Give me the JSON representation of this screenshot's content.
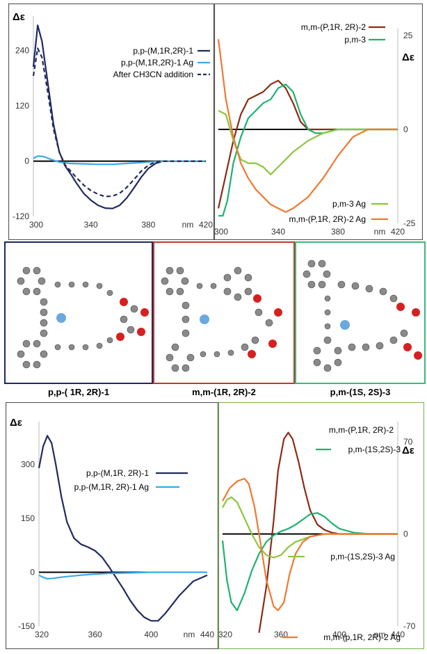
{
  "chart_data": [
    {
      "id": "A",
      "type": "line",
      "ylabel": "Δε",
      "xlabel": "nm",
      "x_ticks": [
        "300",
        "340",
        "380",
        "420"
      ],
      "y_ticks": [
        "240",
        "120",
        "0",
        "-120"
      ],
      "xlim": [
        300,
        420
      ],
      "ylim": [
        -120,
        300
      ],
      "series": [
        {
          "name": "p,p-(M,1R,2R)-1",
          "color": "#1f2a5e",
          "dash": false,
          "x": [
            300,
            303,
            306,
            310,
            314,
            318,
            322,
            326,
            330,
            335,
            340,
            345,
            350,
            355,
            360,
            365,
            370,
            375,
            380,
            385,
            390,
            400,
            410,
            420
          ],
          "y": [
            205,
            295,
            260,
            170,
            80,
            20,
            -10,
            -28,
            -48,
            -70,
            -85,
            -96,
            -102,
            -103,
            -96,
            -80,
            -58,
            -35,
            -16,
            -5,
            0,
            0,
            0,
            0
          ]
        },
        {
          "name": "p,p-(M,1R,2R)-1 Ag",
          "color": "#3aa9e8",
          "dash": false,
          "x": [
            300,
            303,
            307,
            312,
            318,
            325,
            335,
            345,
            355,
            365,
            375,
            385,
            395,
            420
          ],
          "y": [
            6,
            11,
            10,
            4,
            -2,
            -5,
            -6,
            -7,
            -7,
            -5,
            -3,
            -1,
            0,
            0
          ]
        },
        {
          "name": "After CH3CN addition",
          "color": "#1f2a5e",
          "dash": true,
          "x": [
            300,
            303,
            306,
            310,
            314,
            318,
            322,
            326,
            330,
            335,
            340,
            345,
            350,
            355,
            360,
            365,
            370,
            375,
            380,
            385,
            390,
            400,
            410,
            420
          ],
          "y": [
            185,
            245,
            225,
            150,
            70,
            20,
            -8,
            -22,
            -36,
            -52,
            -64,
            -72,
            -77,
            -76,
            -70,
            -57,
            -40,
            -22,
            -9,
            -2,
            0,
            0,
            0,
            0
          ]
        }
      ]
    },
    {
      "id": "B",
      "type": "line",
      "ylabel": "Δε",
      "xlabel": "nm",
      "x_ticks": [
        "300",
        "340",
        "380",
        "420"
      ],
      "y_ticks": [
        "25",
        "0",
        "-25"
      ],
      "xlim": [
        300,
        420
      ],
      "ylim": [
        -25,
        25
      ],
      "series": [
        {
          "name": "m,m-(P,1R, 2R)-2",
          "color": "#8b2c14",
          "x": [
            300,
            305,
            310,
            315,
            320,
            325,
            330,
            335,
            340,
            345,
            350,
            355,
            360,
            365,
            370,
            380,
            390,
            420
          ],
          "y": [
            -21,
            -12,
            -3,
            4,
            8,
            9,
            10,
            12,
            13,
            11,
            7,
            2,
            0,
            0,
            0,
            0,
            0,
            0
          ]
        },
        {
          "name": "p,m-3",
          "color": "#1db26f",
          "x": [
            300,
            303,
            306,
            310,
            315,
            320,
            325,
            330,
            335,
            340,
            345,
            350,
            355,
            360,
            365,
            370,
            380,
            390,
            420
          ],
          "y": [
            -23,
            -23,
            -19,
            -9,
            -2,
            3,
            5,
            7,
            8,
            11,
            12,
            10,
            4,
            0,
            -1,
            -1,
            0,
            0,
            0
          ]
        },
        {
          "name": "p,m-3 Ag",
          "color": "#8cc63f",
          "x": [
            300,
            305,
            310,
            315,
            320,
            325,
            330,
            335,
            340,
            345,
            350,
            360,
            370,
            380,
            390,
            420
          ],
          "y": [
            5,
            4,
            -3,
            -8,
            -9,
            -9,
            -10,
            -12,
            -10,
            -8,
            -6,
            -3,
            -1,
            0,
            0,
            0
          ]
        },
        {
          "name": "m,m-(P,1R, 2R)-2 Ag",
          "color": "#f07830",
          "x": [
            300,
            305,
            310,
            315,
            320,
            325,
            330,
            335,
            340,
            345,
            350,
            360,
            370,
            380,
            390,
            400,
            410,
            420
          ],
          "y": [
            24,
            8,
            -2,
            -9,
            -13,
            -16,
            -18,
            -20,
            -21,
            -22,
            -21,
            -18,
            -13,
            -7,
            -2,
            0,
            0,
            0
          ]
        }
      ]
    },
    {
      "id": "C",
      "type": "line",
      "ylabel": "Δε",
      "xlabel": "nm",
      "x_ticks": [
        "320",
        "360",
        "400",
        "440"
      ],
      "y_ticks": [
        "300",
        "150",
        "0",
        "-150"
      ],
      "xlim": [
        320,
        440
      ],
      "ylim": [
        -150,
        400
      ],
      "series": [
        {
          "name": "p,p-(M,1R, 2R)-1",
          "color": "#1f2a5e",
          "x": [
            320,
            323,
            326,
            329,
            332,
            336,
            340,
            345,
            350,
            355,
            360,
            365,
            370,
            375,
            380,
            385,
            390,
            395,
            400,
            405,
            410,
            420,
            430,
            440
          ],
          "y": [
            290,
            350,
            380,
            360,
            300,
            210,
            140,
            95,
            78,
            70,
            60,
            42,
            15,
            -15,
            -45,
            -78,
            -105,
            -125,
            -135,
            -135,
            -115,
            -65,
            -25,
            -8
          ]
        },
        {
          "name": "p,p-(M,1R, 2R)-1 Ag",
          "color": "#3aa9e8",
          "x": [
            320,
            323,
            326,
            330,
            335,
            340,
            350,
            360,
            370,
            380,
            390,
            400,
            420,
            440
          ],
          "y": [
            -8,
            -14,
            -18,
            -17,
            -14,
            -12,
            -8,
            -5,
            -3,
            -2,
            -1,
            0,
            0,
            0
          ]
        }
      ]
    },
    {
      "id": "D",
      "type": "line",
      "ylabel": "Δε",
      "xlabel": "nm",
      "x_ticks": [
        "320",
        "360",
        "400",
        "440"
      ],
      "y_ticks": [
        "70",
        "0",
        "-70"
      ],
      "xlim": [
        320,
        440
      ],
      "ylim": [
        -70,
        80
      ],
      "series": [
        {
          "name": "m,m-(P,1R, 2R)-2",
          "color": "#8b2c14",
          "x": [
            345,
            350,
            355,
            358,
            362,
            365,
            368,
            372,
            376,
            380,
            385,
            390,
            395,
            400,
            410,
            420,
            440
          ],
          "y": [
            -75,
            -40,
            10,
            48,
            72,
            77,
            72,
            55,
            35,
            18,
            7,
            3,
            1,
            0,
            0,
            0,
            0
          ]
        },
        {
          "name": "p,m-(1S,2S)-3",
          "color": "#1db26f",
          "x": [
            320,
            323,
            326,
            330,
            335,
            340,
            345,
            350,
            355,
            360,
            365,
            370,
            375,
            380,
            385,
            390,
            395,
            400,
            410,
            420,
            440
          ],
          "y": [
            -5,
            -35,
            -52,
            -58,
            -45,
            -28,
            -15,
            -6,
            -1,
            2,
            4,
            7,
            11,
            15,
            16,
            13,
            8,
            4,
            1,
            0,
            0
          ]
        },
        {
          "name": "p,m-(1S,2S)-3 Ag",
          "color": "#8cc63f",
          "x": [
            320,
            323,
            326,
            330,
            335,
            340,
            345,
            350,
            355,
            360,
            365,
            370,
            380,
            390,
            400,
            410,
            440
          ],
          "y": [
            20,
            26,
            28,
            24,
            12,
            0,
            -10,
            -16,
            -18,
            -16,
            -10,
            -6,
            -2,
            0,
            0,
            0,
            0
          ]
        },
        {
          "name": "m,m-(p,1R, 2R)-2 Ag",
          "color": "#f07830",
          "x": [
            320,
            325,
            330,
            335,
            338,
            342,
            345,
            350,
            355,
            358,
            362,
            366,
            370,
            375,
            380,
            390,
            400,
            410,
            440
          ],
          "y": [
            25,
            35,
            40,
            42,
            38,
            20,
            0,
            -35,
            -55,
            -58,
            -52,
            -30,
            -15,
            -6,
            -2,
            0,
            0,
            0,
            0
          ]
        }
      ]
    }
  ],
  "molecules": [
    {
      "caption": "p,p-( 1R, 2R)-1",
      "border": "#1f2a5e"
    },
    {
      "caption": "m,m-(1R, 2R)-2",
      "border": "#c0392b"
    },
    {
      "caption": "p,m-(1S, 2S)-3",
      "border": "#3cb878"
    }
  ]
}
